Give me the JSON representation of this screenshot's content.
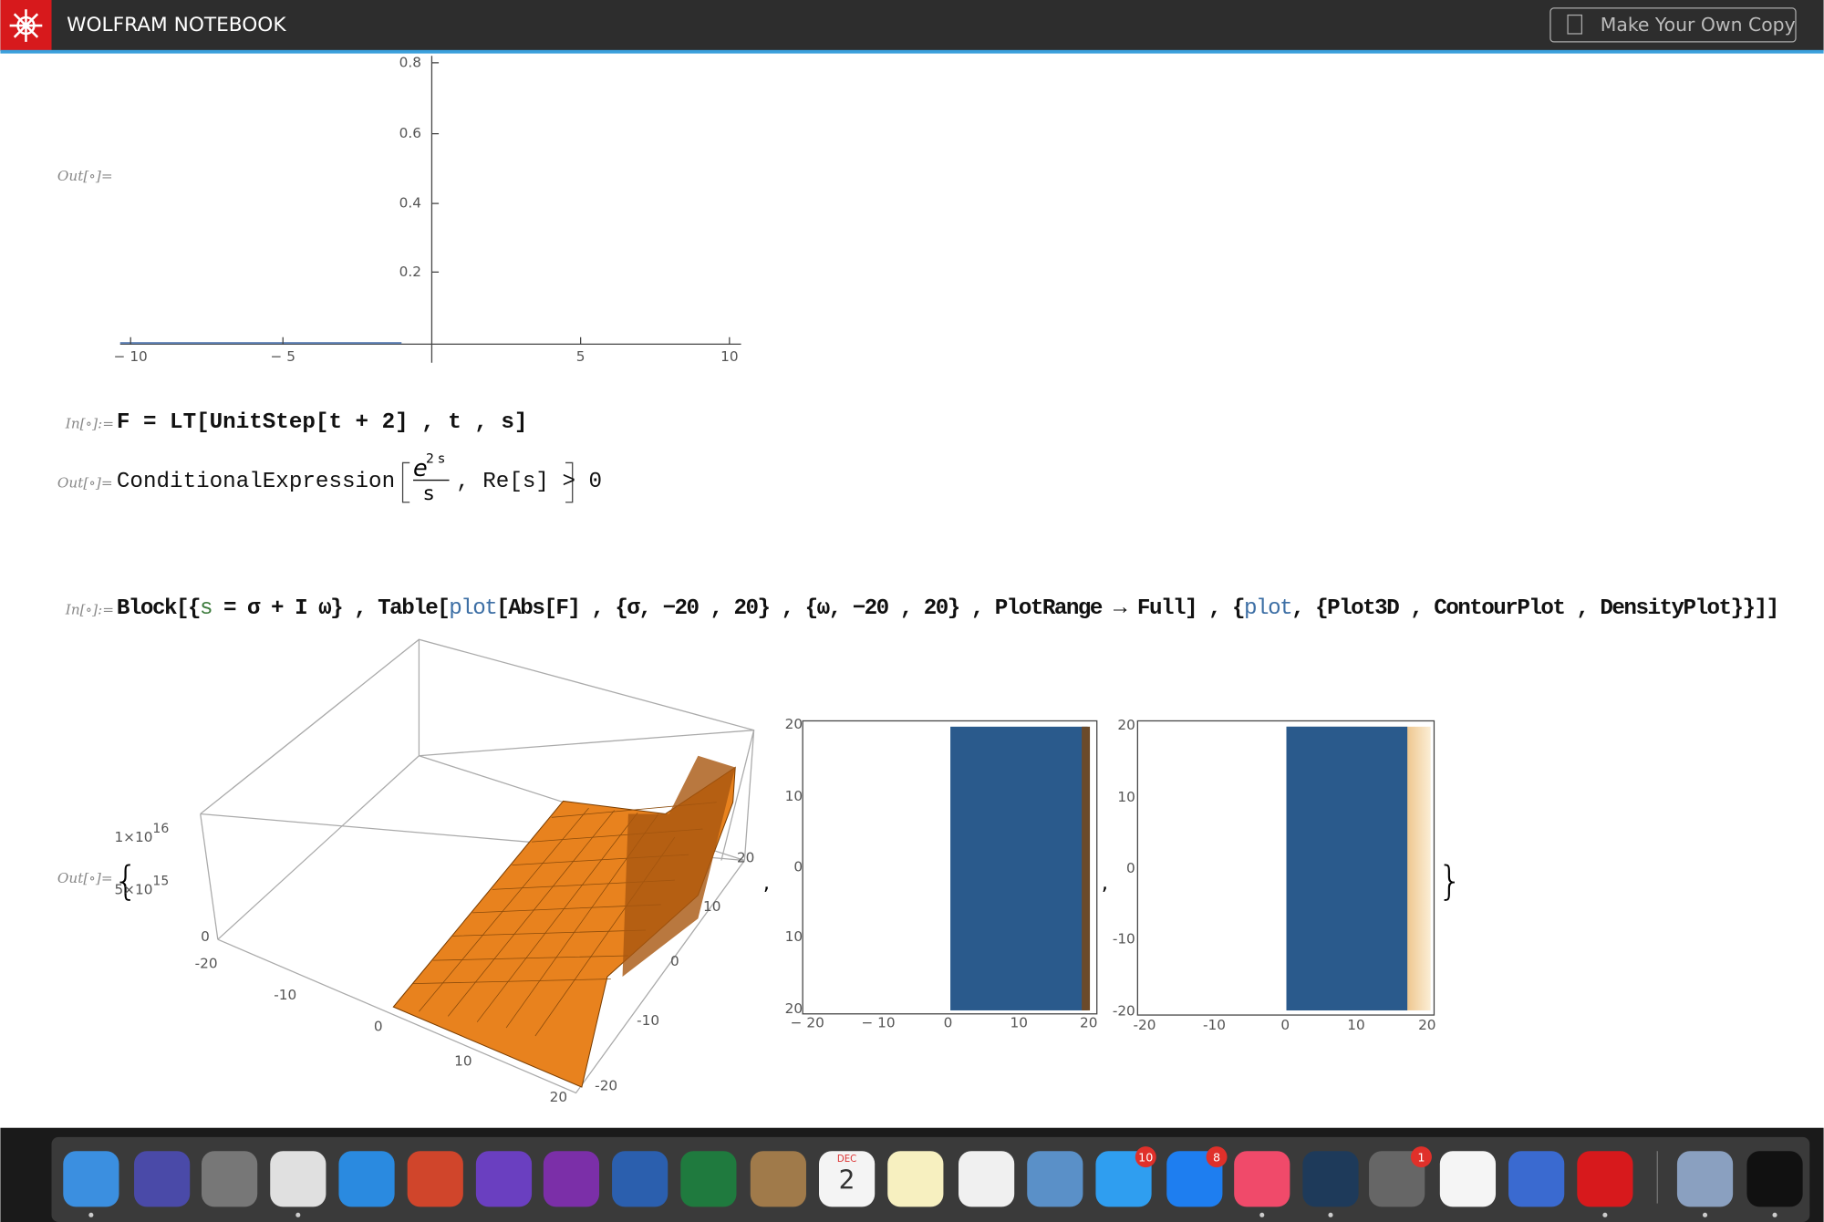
{
  "header": {
    "title": "WOLFRAM NOTEBOOK",
    "button": "Make Your Own Copy"
  },
  "cells": [
    {
      "label": "Out[∘]=",
      "plot": {
        "yticks": [
          "0.8",
          "0.6",
          "0.4",
          "0.2"
        ],
        "xticks": [
          "− 10",
          "− 5",
          "5",
          "10"
        ]
      }
    },
    {
      "label": "In[∘]:=",
      "input": "F = LT[UnitStep[t + 2] , t , s]"
    },
    {
      "label": "Out[∘]=",
      "output": {
        "head": "ConditionalExpression",
        "numerator": "e",
        "exponent": "2 s",
        "denominator": "s",
        "condition": ", Re[s] > 0"
      }
    },
    {
      "label": "In[∘]:=",
      "input": [
        "Block[{",
        "s",
        " = σ + I ω} , Table[",
        "plot",
        "[Abs[F] , {σ, −20 , 20} , {ω, −20 , 20} , PlotRange → Full] , {",
        "plot",
        ", {Plot3D , ContourPlot , DensityPlot}}]]"
      ]
    },
    {
      "label": "Out[∘]=",
      "open": "{",
      "close": "}",
      "separators": [
        ",",
        ","
      ],
      "plot3d": {
        "zticks": [
          {
            "base": "1×10",
            "exp": "16"
          },
          {
            "base": "5×10",
            "exp": "15"
          },
          "0"
        ],
        "xticks": [
          "-20",
          "-10",
          "0",
          "10",
          "20"
        ],
        "yticks": [
          "20",
          "10",
          "0",
          "-10",
          "-20"
        ]
      },
      "contour": {
        "yticks": [
          "20",
          "10",
          "0",
          "10",
          "20"
        ],
        "xticks": [
          "− 20",
          "− 10",
          "0",
          "10",
          "20"
        ]
      },
      "density": {
        "yticks": [
          "20",
          "10",
          "0",
          "-10",
          "-20"
        ],
        "xticks": [
          "-20",
          "-10",
          "0",
          "10",
          "20"
        ]
      }
    }
  ],
  "dock": {
    "badges": [
      "10",
      "8",
      "1"
    ],
    "calendar": {
      "month": "DEC",
      "day": "2"
    }
  }
}
